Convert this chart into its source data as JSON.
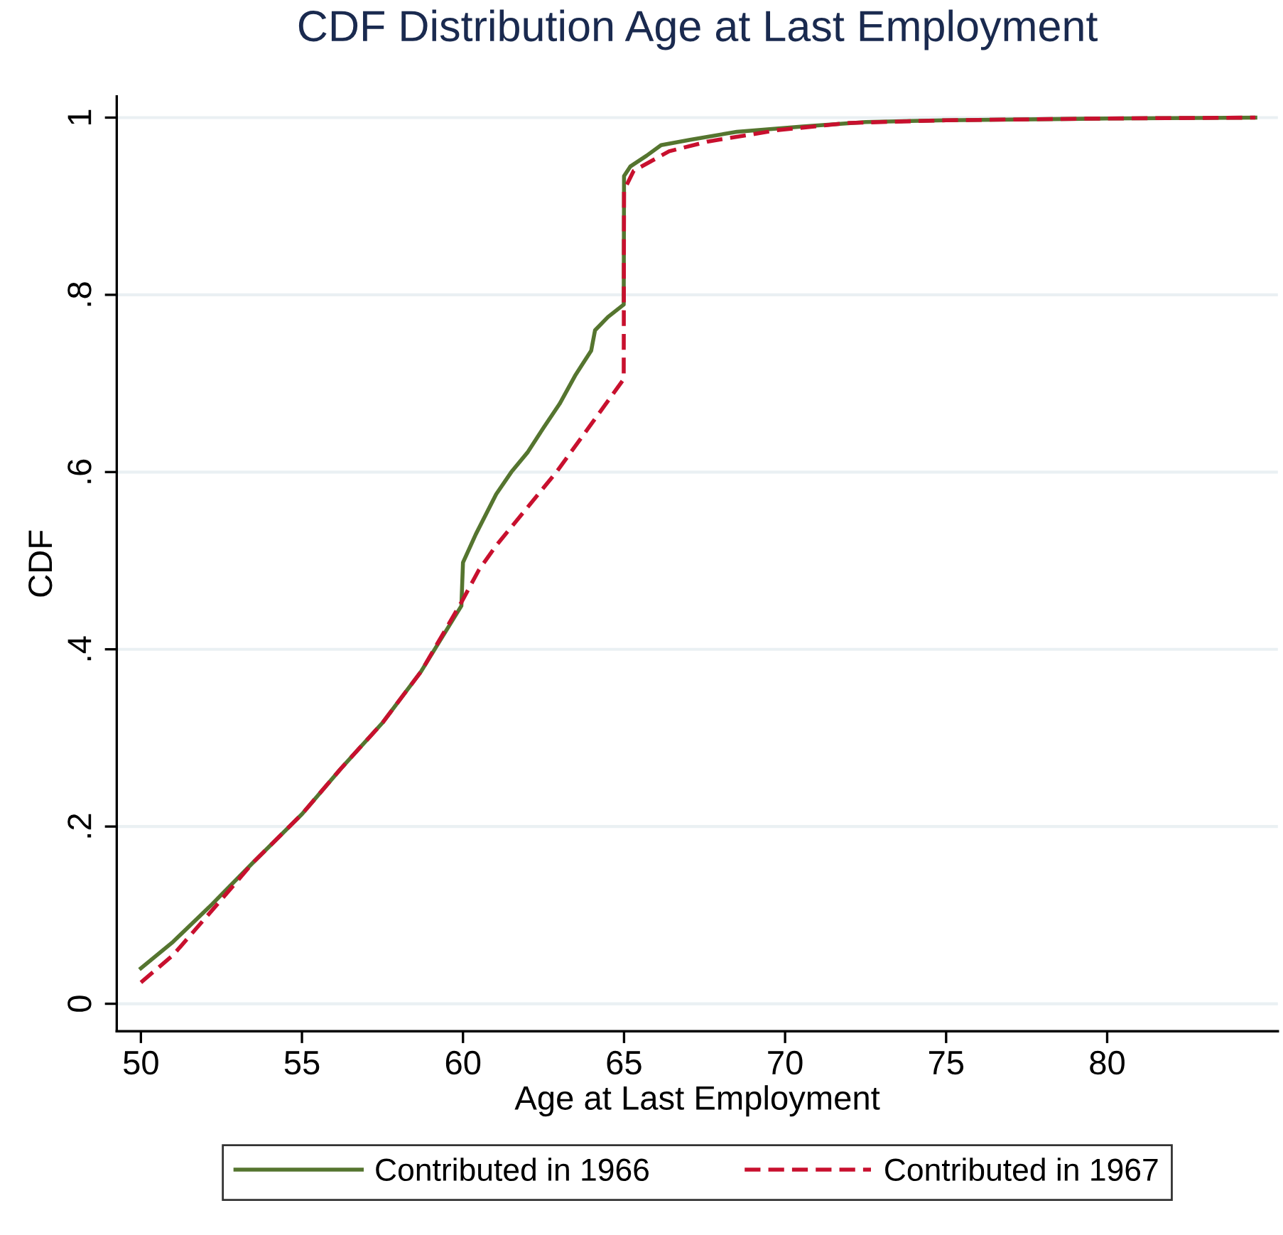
{
  "chart_data": {
    "type": "line",
    "title": "CDF Distribution Age at Last Employment",
    "xlabel": "Age at Last Employment",
    "ylabel": "CDF",
    "xlim": [
      49.25,
      85.3
    ],
    "xticks": [
      50,
      55,
      60,
      65,
      70,
      75,
      80
    ],
    "ylim": [
      -0.031,
      1.024
    ],
    "yticks": [
      {
        "value": 0,
        "label": "0"
      },
      {
        "value": 0.2,
        "label": ".2"
      },
      {
        "value": 0.4,
        "label": ".4"
      },
      {
        "value": 0.6,
        "label": ".6"
      },
      {
        "value": 0.8,
        "label": ".8"
      },
      {
        "value": 1,
        "label": "1"
      }
    ],
    "grid": "y",
    "legend": "bottom",
    "series": [
      {
        "name": "Contributed in 1966",
        "color": "#55752f",
        "line_style": "solid",
        "x": [
          50,
          51,
          52.2,
          53.5,
          55,
          56.2,
          57.5,
          58.7,
          59.95,
          60,
          60.4,
          61.03,
          61.5,
          62,
          62.5,
          63,
          63.5,
          63.98,
          64.1,
          64.5,
          64.99,
          65,
          65.2,
          65.7,
          66.15,
          67.05,
          68.5,
          70.55,
          72.5,
          75,
          80,
          84.6
        ],
        "values": [
          0.04,
          0.07,
          0.112,
          0.16,
          0.214,
          0.265,
          0.317,
          0.375,
          0.449,
          0.498,
          0.53,
          0.575,
          0.6,
          0.622,
          0.65,
          0.677,
          0.71,
          0.737,
          0.76,
          0.775,
          0.789,
          0.934,
          0.945,
          0.957,
          0.969,
          0.975,
          0.984,
          0.99,
          0.995,
          0.997,
          0.999,
          1.0
        ]
      },
      {
        "name": "Contributed in 1967",
        "color": "#c8102e",
        "line_style": "dashed",
        "x": [
          50,
          51,
          52.2,
          53.5,
          55,
          56.2,
          57.5,
          58.7,
          59.95,
          60.5,
          61.03,
          62,
          62.9,
          64,
          64.99,
          65,
          65.3,
          66.4,
          67.6,
          69.8,
          72,
          75,
          80,
          84.6
        ],
        "values": [
          0.024,
          0.055,
          0.105,
          0.16,
          0.214,
          0.265,
          0.317,
          0.375,
          0.453,
          0.49,
          0.517,
          0.56,
          0.6,
          0.655,
          0.705,
          0.918,
          0.94,
          0.962,
          0.973,
          0.986,
          0.994,
          0.997,
          0.999,
          1.0
        ]
      }
    ]
  }
}
